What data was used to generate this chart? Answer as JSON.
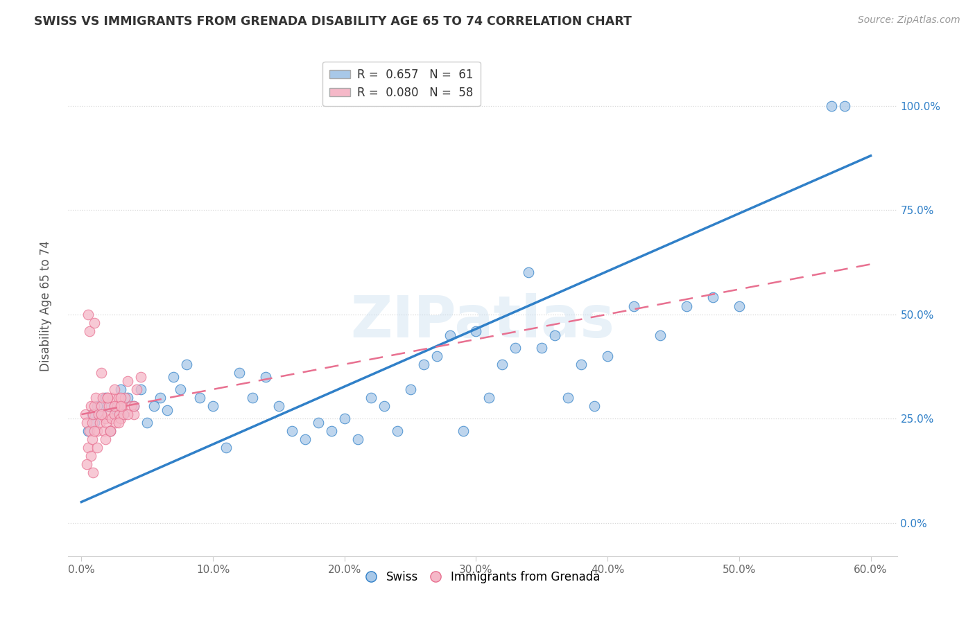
{
  "title": "SWISS VS IMMIGRANTS FROM GRENADA DISABILITY AGE 65 TO 74 CORRELATION CHART",
  "source": "Source: ZipAtlas.com",
  "ylabel": "Disability Age 65 to 74",
  "x_tick_labels": [
    "0.0%",
    "10.0%",
    "20.0%",
    "30.0%",
    "40.0%",
    "50.0%",
    "60.0%"
  ],
  "x_tick_values": [
    0.0,
    10.0,
    20.0,
    30.0,
    40.0,
    50.0,
    60.0
  ],
  "y_tick_labels": [
    "0.0%",
    "25.0%",
    "50.0%",
    "75.0%",
    "100.0%"
  ],
  "y_tick_values": [
    0.0,
    25.0,
    50.0,
    75.0,
    100.0
  ],
  "xlim": [
    -1.0,
    62.0
  ],
  "ylim": [
    -8.0,
    112.0
  ],
  "swiss_R": 0.657,
  "swiss_N": 61,
  "grenada_R": 0.08,
  "grenada_N": 58,
  "swiss_color": "#a8c8e8",
  "grenada_color": "#f5b8c8",
  "swiss_line_color": "#3080c8",
  "grenada_line_color": "#e87090",
  "legend_swiss_label": "Swiss",
  "legend_grenada_label": "Immigrants from Grenada",
  "watermark": "ZIPatlas",
  "swiss_line_x0": 0.0,
  "swiss_line_y0": 5.0,
  "swiss_line_x1": 60.0,
  "swiss_line_y1": 88.0,
  "grenada_line_x0": 0.0,
  "grenada_line_y0": 26.0,
  "grenada_line_x1": 60.0,
  "grenada_line_y1": 62.0,
  "swiss_x": [
    0.5,
    0.8,
    1.0,
    1.2,
    1.5,
    1.8,
    2.0,
    2.2,
    2.5,
    2.8,
    3.0,
    3.2,
    3.5,
    4.0,
    4.5,
    5.0,
    5.5,
    6.0,
    6.5,
    7.0,
    7.5,
    8.0,
    9.0,
    10.0,
    11.0,
    12.0,
    13.0,
    14.0,
    15.0,
    16.0,
    17.0,
    18.0,
    19.0,
    20.0,
    21.0,
    22.0,
    23.0,
    24.0,
    25.0,
    26.0,
    27.0,
    28.0,
    29.0,
    30.0,
    31.0,
    32.0,
    33.0,
    34.0,
    35.0,
    36.0,
    37.0,
    38.0,
    39.0,
    40.0,
    42.0,
    44.0,
    46.0,
    48.0,
    50.0,
    57.0,
    58.0
  ],
  "swiss_y": [
    22.0,
    26.0,
    24.0,
    28.0,
    26.0,
    30.0,
    28.0,
    22.0,
    26.0,
    28.0,
    32.0,
    26.0,
    30.0,
    28.0,
    32.0,
    24.0,
    28.0,
    30.0,
    27.0,
    35.0,
    32.0,
    38.0,
    30.0,
    28.0,
    18.0,
    36.0,
    30.0,
    35.0,
    28.0,
    22.0,
    20.0,
    24.0,
    22.0,
    25.0,
    20.0,
    30.0,
    28.0,
    22.0,
    32.0,
    38.0,
    40.0,
    45.0,
    22.0,
    46.0,
    30.0,
    38.0,
    42.0,
    60.0,
    42.0,
    45.0,
    30.0,
    38.0,
    28.0,
    40.0,
    52.0,
    45.0,
    52.0,
    54.0,
    52.0,
    100.0,
    100.0
  ],
  "grenada_x": [
    0.3,
    0.4,
    0.5,
    0.6,
    0.7,
    0.8,
    0.9,
    1.0,
    1.1,
    1.2,
    1.3,
    1.4,
    1.5,
    1.6,
    1.7,
    1.8,
    1.9,
    2.0,
    2.1,
    2.2,
    2.3,
    2.4,
    2.5,
    2.6,
    2.7,
    2.8,
    2.9,
    3.0,
    3.1,
    3.2,
    3.3,
    3.5,
    3.8,
    4.0,
    4.2,
    4.5,
    0.5,
    0.8,
    1.0,
    1.5,
    2.0,
    2.5,
    3.0,
    0.7,
    1.2,
    1.8,
    2.2,
    2.8,
    3.5,
    4.0,
    0.6,
    1.0,
    1.5,
    2.0,
    2.5,
    3.0,
    0.4,
    0.9
  ],
  "grenada_y": [
    26.0,
    24.0,
    50.0,
    22.0,
    28.0,
    24.0,
    26.0,
    28.0,
    30.0,
    22.0,
    26.0,
    24.0,
    28.0,
    30.0,
    22.0,
    25.0,
    24.0,
    26.0,
    28.0,
    22.0,
    25.0,
    30.0,
    26.0,
    24.0,
    28.0,
    30.0,
    26.0,
    25.0,
    28.0,
    26.0,
    30.0,
    34.0,
    28.0,
    26.0,
    32.0,
    35.0,
    18.0,
    20.0,
    22.0,
    26.0,
    30.0,
    28.0,
    30.0,
    16.0,
    18.0,
    20.0,
    22.0,
    24.0,
    26.0,
    28.0,
    46.0,
    48.0,
    36.0,
    30.0,
    32.0,
    28.0,
    14.0,
    12.0
  ]
}
